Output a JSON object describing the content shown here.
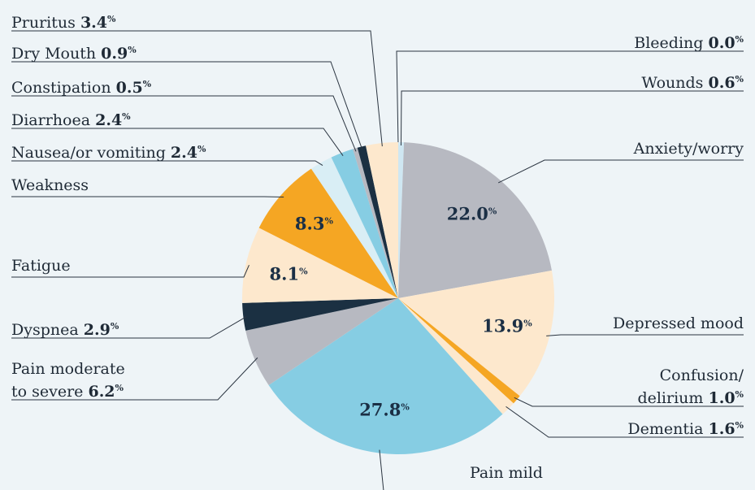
{
  "chart_data": {
    "type": "pie",
    "categories": [
      "Bleeding",
      "Wounds",
      "Anxiety/worry",
      "Depressed mood",
      "Confusion/\ndelirium",
      "Dementia",
      "Pain mild",
      "Pain moderate\nto severe",
      "Dyspnea",
      "Fatigue",
      "Weakness",
      "Nausea/or vomiting",
      "Diarrhoea",
      "Constipation",
      "Dry Mouth",
      "Pruritus"
    ],
    "values": [
      0,
      0.6,
      22.0,
      13.9,
      1.0,
      1.6,
      27.8,
      6.2,
      2.9,
      8.1,
      8.3,
      2.4,
      2.4,
      0.5,
      0.9,
      3.4
    ],
    "value_labels": [
      "0.0",
      "0.6",
      "22.0",
      "13.9",
      "1.0",
      "1.6",
      "27.8",
      "6.2",
      "2.9",
      "8.1",
      "8.3",
      "2.4",
      "2.4",
      "0.5",
      "0.9",
      "3.4"
    ],
    "unit": "%",
    "colors": [
      "#d6ecf4",
      "#cfe7f2",
      "#b7b9c1",
      "#fde8cd",
      "#f5a623",
      "#fde8cd",
      "#86cde3",
      "#b7b9c1",
      "#1b3042",
      "#fde8cd",
      "#f5a623",
      "#d9eef5",
      "#86cde3",
      "#b7b9c1",
      "#1b3042",
      "#fde8cd"
    ]
  }
}
